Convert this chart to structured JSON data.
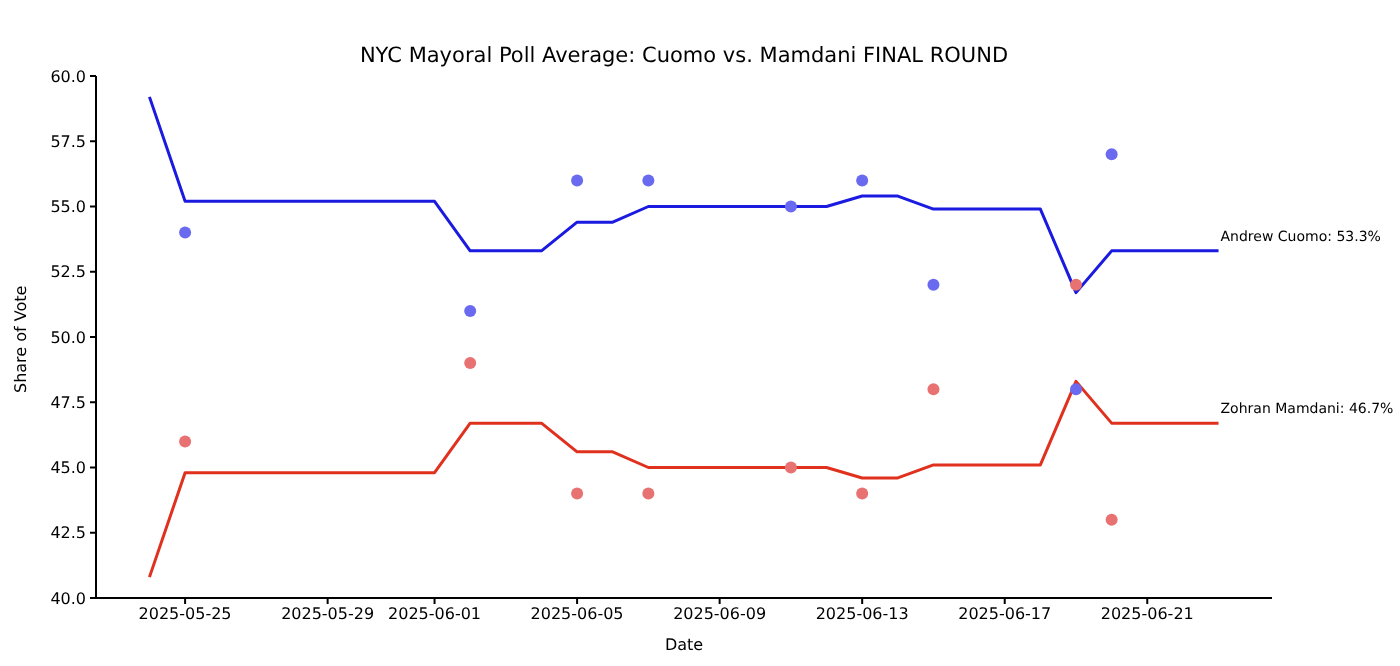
{
  "chart_data": {
    "type": "line",
    "title": "NYC Mayoral Poll Average: Cuomo vs. Mamdani FINAL ROUND",
    "xlabel": "Date",
    "ylabel": "Share of Vote",
    "xlim": [
      "2025-05-22T12:00",
      "2025-06-24T12:00"
    ],
    "xticks": [
      "2025-05-25",
      "2025-05-29",
      "2025-06-01",
      "2025-06-05",
      "2025-06-09",
      "2025-06-13",
      "2025-06-17",
      "2025-06-21"
    ],
    "ylim": [
      40,
      60
    ],
    "yticks": [
      {
        "value": 40,
        "label": "40.0"
      },
      {
        "value": 42.5,
        "label": "42.5"
      },
      {
        "value": 45,
        "label": "45.0"
      },
      {
        "value": 47.5,
        "label": "47.5"
      },
      {
        "value": 50,
        "label": "50.0"
      },
      {
        "value": 52.5,
        "label": "52.5"
      },
      {
        "value": 55,
        "label": "55.0"
      },
      {
        "value": 57.5,
        "label": "57.5"
      },
      {
        "value": 60,
        "label": "60.0"
      }
    ],
    "grid": false,
    "series": [
      {
        "type": "line",
        "marker": "none",
        "color": "#1a1ae0",
        "x": [
          "2025-05-24",
          "2025-05-25",
          "2025-06-01",
          "2025-06-02",
          "2025-06-04",
          "2025-06-05",
          "2025-06-06",
          "2025-06-07",
          "2025-06-11",
          "2025-06-12",
          "2025-06-13",
          "2025-06-14",
          "2025-06-15",
          "2025-06-18",
          "2025-06-19",
          "2025-06-20",
          "2025-06-23"
        ],
        "values": [
          59.2,
          55.2,
          55.2,
          53.3,
          53.3,
          54.4,
          54.4,
          55.0,
          55.0,
          55.0,
          55.4,
          55.4,
          54.9,
          54.9,
          51.7,
          53.3,
          53.3
        ]
      },
      {
        "type": "line",
        "marker": "none",
        "color": "#e0301e",
        "x": [
          "2025-05-24",
          "2025-05-25",
          "2025-06-01",
          "2025-06-02",
          "2025-06-04",
          "2025-06-05",
          "2025-06-06",
          "2025-06-07",
          "2025-06-11",
          "2025-06-12",
          "2025-06-13",
          "2025-06-14",
          "2025-06-15",
          "2025-06-18",
          "2025-06-19",
          "2025-06-20",
          "2025-06-23"
        ],
        "values": [
          40.8,
          44.8,
          44.8,
          46.7,
          46.7,
          45.6,
          45.6,
          45.0,
          45.0,
          45.0,
          44.6,
          44.6,
          45.1,
          45.1,
          48.3,
          46.7,
          46.7
        ]
      },
      {
        "type": "scatter",
        "marker": "circle",
        "color": "#6a6af0",
        "x": [
          "2025-05-25",
          "2025-06-02",
          "2025-06-05",
          "2025-06-07",
          "2025-06-11",
          "2025-06-13",
          "2025-06-15",
          "2025-06-19",
          "2025-06-20"
        ],
        "values": [
          54,
          51,
          56,
          56,
          55,
          56,
          52,
          48,
          57
        ]
      },
      {
        "type": "scatter",
        "marker": "circle",
        "color": "#e87272",
        "x": [
          "2025-05-25",
          "2025-06-02",
          "2025-06-05",
          "2025-06-07",
          "2025-06-11",
          "2025-06-13",
          "2025-06-15",
          "2025-06-19",
          "2025-06-20"
        ],
        "values": [
          46,
          49,
          44,
          44,
          45,
          44,
          48,
          52,
          43
        ]
      }
    ],
    "annotations": [
      {
        "text": "Andrew Cuomo: 53.3%",
        "x": "2025-06-23",
        "y": 53.3
      },
      {
        "text": "Zohran Mamdani: 46.7%",
        "x": "2025-06-23",
        "y": 46.7
      }
    ]
  }
}
